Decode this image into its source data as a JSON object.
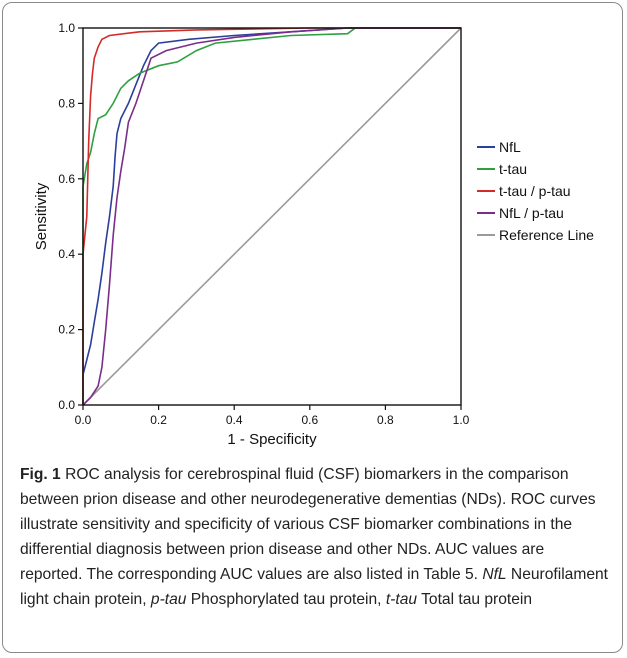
{
  "chart_data": {
    "type": "line",
    "xlabel": "1 - Specificity",
    "ylabel": "Sensitivity",
    "xlim": [
      0,
      1
    ],
    "ylim": [
      0,
      1
    ],
    "x_ticks": [
      "0.0",
      "0.2",
      "0.4",
      "0.6",
      "0.8",
      "1.0"
    ],
    "y_ticks": [
      "0.0",
      "0.2",
      "0.4",
      "0.6",
      "0.8",
      "1.0"
    ],
    "grid": false,
    "legend_position": "right",
    "series": [
      {
        "name": "NfL",
        "color": "#2b3f9c",
        "points": [
          [
            0,
            0
          ],
          [
            0,
            0.08
          ],
          [
            0.01,
            0.12
          ],
          [
            0.02,
            0.16
          ],
          [
            0.03,
            0.22
          ],
          [
            0.04,
            0.28
          ],
          [
            0.05,
            0.35
          ],
          [
            0.06,
            0.43
          ],
          [
            0.07,
            0.5
          ],
          [
            0.08,
            0.58
          ],
          [
            0.085,
            0.66
          ],
          [
            0.09,
            0.72
          ],
          [
            0.1,
            0.76
          ],
          [
            0.12,
            0.8
          ],
          [
            0.14,
            0.85
          ],
          [
            0.16,
            0.9
          ],
          [
            0.18,
            0.94
          ],
          [
            0.2,
            0.96
          ],
          [
            0.28,
            0.97
          ],
          [
            0.4,
            0.98
          ],
          [
            0.55,
            0.99
          ],
          [
            0.7,
            1.0
          ],
          [
            1.0,
            1.0
          ]
        ]
      },
      {
        "name": "t-tau",
        "color": "#2ea040",
        "points": [
          [
            0,
            0
          ],
          [
            0,
            0.58
          ],
          [
            0.01,
            0.64
          ],
          [
            0.02,
            0.67
          ],
          [
            0.03,
            0.72
          ],
          [
            0.04,
            0.76
          ],
          [
            0.06,
            0.77
          ],
          [
            0.08,
            0.8
          ],
          [
            0.1,
            0.84
          ],
          [
            0.12,
            0.86
          ],
          [
            0.15,
            0.88
          ],
          [
            0.2,
            0.9
          ],
          [
            0.25,
            0.91
          ],
          [
            0.3,
            0.94
          ],
          [
            0.35,
            0.96
          ],
          [
            0.45,
            0.97
          ],
          [
            0.55,
            0.98
          ],
          [
            0.7,
            0.985
          ],
          [
            0.72,
            1.0
          ],
          [
            1.0,
            1.0
          ]
        ]
      },
      {
        "name": "t-tau / p-tau",
        "color": "#d42a2a",
        "points": [
          [
            0,
            0
          ],
          [
            0,
            0.4
          ],
          [
            0.01,
            0.5
          ],
          [
            0.015,
            0.7
          ],
          [
            0.02,
            0.82
          ],
          [
            0.025,
            0.88
          ],
          [
            0.03,
            0.92
          ],
          [
            0.04,
            0.95
          ],
          [
            0.05,
            0.97
          ],
          [
            0.07,
            0.98
          ],
          [
            0.15,
            0.99
          ],
          [
            0.3,
            0.995
          ],
          [
            0.6,
            1.0
          ],
          [
            1.0,
            1.0
          ]
        ]
      },
      {
        "name": "NfL / p-tau",
        "color": "#7a2d8a",
        "points": [
          [
            0,
            0
          ],
          [
            0.02,
            0.02
          ],
          [
            0.04,
            0.05
          ],
          [
            0.05,
            0.1
          ],
          [
            0.06,
            0.2
          ],
          [
            0.07,
            0.32
          ],
          [
            0.08,
            0.45
          ],
          [
            0.09,
            0.55
          ],
          [
            0.1,
            0.62
          ],
          [
            0.11,
            0.68
          ],
          [
            0.12,
            0.75
          ],
          [
            0.14,
            0.8
          ],
          [
            0.16,
            0.86
          ],
          [
            0.18,
            0.92
          ],
          [
            0.22,
            0.94
          ],
          [
            0.3,
            0.96
          ],
          [
            0.4,
            0.975
          ],
          [
            0.55,
            0.99
          ],
          [
            0.7,
            1.0
          ],
          [
            1.0,
            1.0
          ]
        ]
      },
      {
        "name": "Reference Line",
        "color": "#9a9a9a",
        "points": [
          [
            0,
            0
          ],
          [
            1,
            1
          ]
        ]
      }
    ]
  },
  "caption": {
    "fig_label": "Fig. 1",
    "text_1": " ROC analysis for cerebrospinal fluid (CSF) biomarkers in the comparison between prion disease and other neurodegenerative dementias (NDs). ROC curves illustrate sensitivity and specificity of various CSF biomarker combinations in the differential diagnosis between prion disease and other NDs. AUC values are reported. The corresponding AUC values are also listed in Table 5. ",
    "abbr_nfl": "NfL",
    "def_nfl": " Neurofilament light chain protein, ",
    "abbr_ptau": "p-tau",
    "def_ptau": " Phosphorylated tau protein, ",
    "abbr_ttau": "t-tau",
    "def_ttau": " Total tau protein"
  }
}
